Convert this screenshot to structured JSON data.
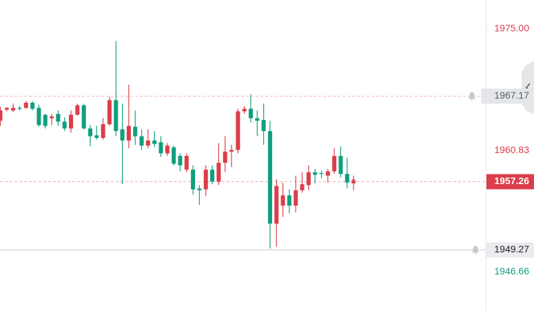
{
  "chart_data": {
    "type": "candlestick",
    "up_color": "#dc3d4a",
    "down_color": "#0f9f7e",
    "ylim": [
      1942.12,
      1978.38
    ],
    "yticks": [
      {
        "value": 1975,
        "label": "1975.00"
      },
      1960.83,
      1946.66
    ],
    "current_price": 1957.26,
    "alert_lines": [
      1967.17,
      1949.27
    ],
    "open": [
      1964.3,
      1965.6,
      1965.5,
      1965.8,
      1965.8,
      1966.4,
      1965.8,
      1965.0,
      1964.6,
      1965.1,
      1964.2,
      1963.4,
      1965.0,
      1966.1,
      1963.4,
      1962.6,
      1962.3,
      1963.9,
      1966.7,
      1963.3,
      1962.0,
      1963.6,
      1962.5,
      1961.4,
      1962.0,
      1961.8,
      1960.5,
      1961.2,
      1960.2,
      1958.6,
      1958.6,
      1956.4,
      1956.3,
      1958.6,
      1957.2,
      1959.4,
      1960.7,
      1960.9,
      1965.4,
      1965.7,
      1964.6,
      1964.4,
      1963.1,
      1952.3,
      1954.4,
      1955.6,
      1954.4,
      1956.2,
      1956.8,
      1958.3,
      1958.2,
      1957.9,
      1958.4,
      1960.2,
      1958.1,
      1957.0
    ],
    "high": [
      1965.9,
      1965.9,
      1966.3,
      1966.0,
      1966.6,
      1966.6,
      1966.2,
      1965.1,
      1965.1,
      1965.5,
      1964.7,
      1965.5,
      1966.3,
      1966.3,
      1963.8,
      1963.7,
      1964.6,
      1967.1,
      1973.6,
      1966.3,
      1968.5,
      1965.5,
      1963.3,
      1963.3,
      1963.1,
      1962.5,
      1961.7,
      1961.4,
      1960.5,
      1960.5,
      1959.1,
      1956.8,
      1959.1,
      1959.1,
      1961.7,
      1962.5,
      1961.5,
      1965.7,
      1966.0,
      1967.4,
      1965.5,
      1966.3,
      1964.3,
      1957.5,
      1957.1,
      1956.3,
      1957.9,
      1958.3,
      1959.1,
      1958.7,
      1958.5,
      1958.7,
      1961.1,
      1961.3,
      1960.0,
      1957.9
    ],
    "low": [
      1963.7,
      1965.4,
      1965.3,
      1965.5,
      1965.7,
      1965.5,
      1963.6,
      1963.4,
      1963.8,
      1963.7,
      1963.1,
      1962.9,
      1964.9,
      1963.3,
      1961.3,
      1962.1,
      1962.1,
      1963.7,
      1962.5,
      1956.9,
      1961.1,
      1961.5,
      1960.9,
      1961.1,
      1961.2,
      1960.1,
      1960.2,
      1959.1,
      1958.4,
      1958.3,
      1955.7,
      1954.5,
      1955.5,
      1956.9,
      1956.8,
      1958.3,
      1958.9,
      1960.5,
      1965.1,
      1964.1,
      1962.5,
      1961.5,
      1949.4,
      1949.6,
      1953.1,
      1953.5,
      1953.6,
      1955.9,
      1956.2,
      1957.0,
      1957.6,
      1957.1,
      1958.1,
      1957.7,
      1956.4,
      1956.2
    ],
    "close": [
      1965.5,
      1965.8,
      1965.8,
      1965.7,
      1966.4,
      1965.7,
      1963.8,
      1963.7,
      1964.8,
      1964.2,
      1963.4,
      1965.0,
      1966.1,
      1963.4,
      1962.5,
      1962.3,
      1963.9,
      1966.7,
      1963.1,
      1962.0,
      1963.7,
      1962.5,
      1961.4,
      1962.0,
      1961.6,
      1960.5,
      1961.4,
      1959.3,
      1959.1,
      1960.2,
      1956.3,
      1956.2,
      1958.6,
      1957.2,
      1959.4,
      1960.7,
      1960.9,
      1965.4,
      1965.7,
      1964.6,
      1964.3,
      1963.1,
      1952.3,
      1956.7,
      1955.6,
      1954.4,
      1956.2,
      1956.9,
      1958.3,
      1958.0,
      1958.1,
      1958.4,
      1960.2,
      1958.1,
      1957.1,
      1957.26
    ]
  }
}
